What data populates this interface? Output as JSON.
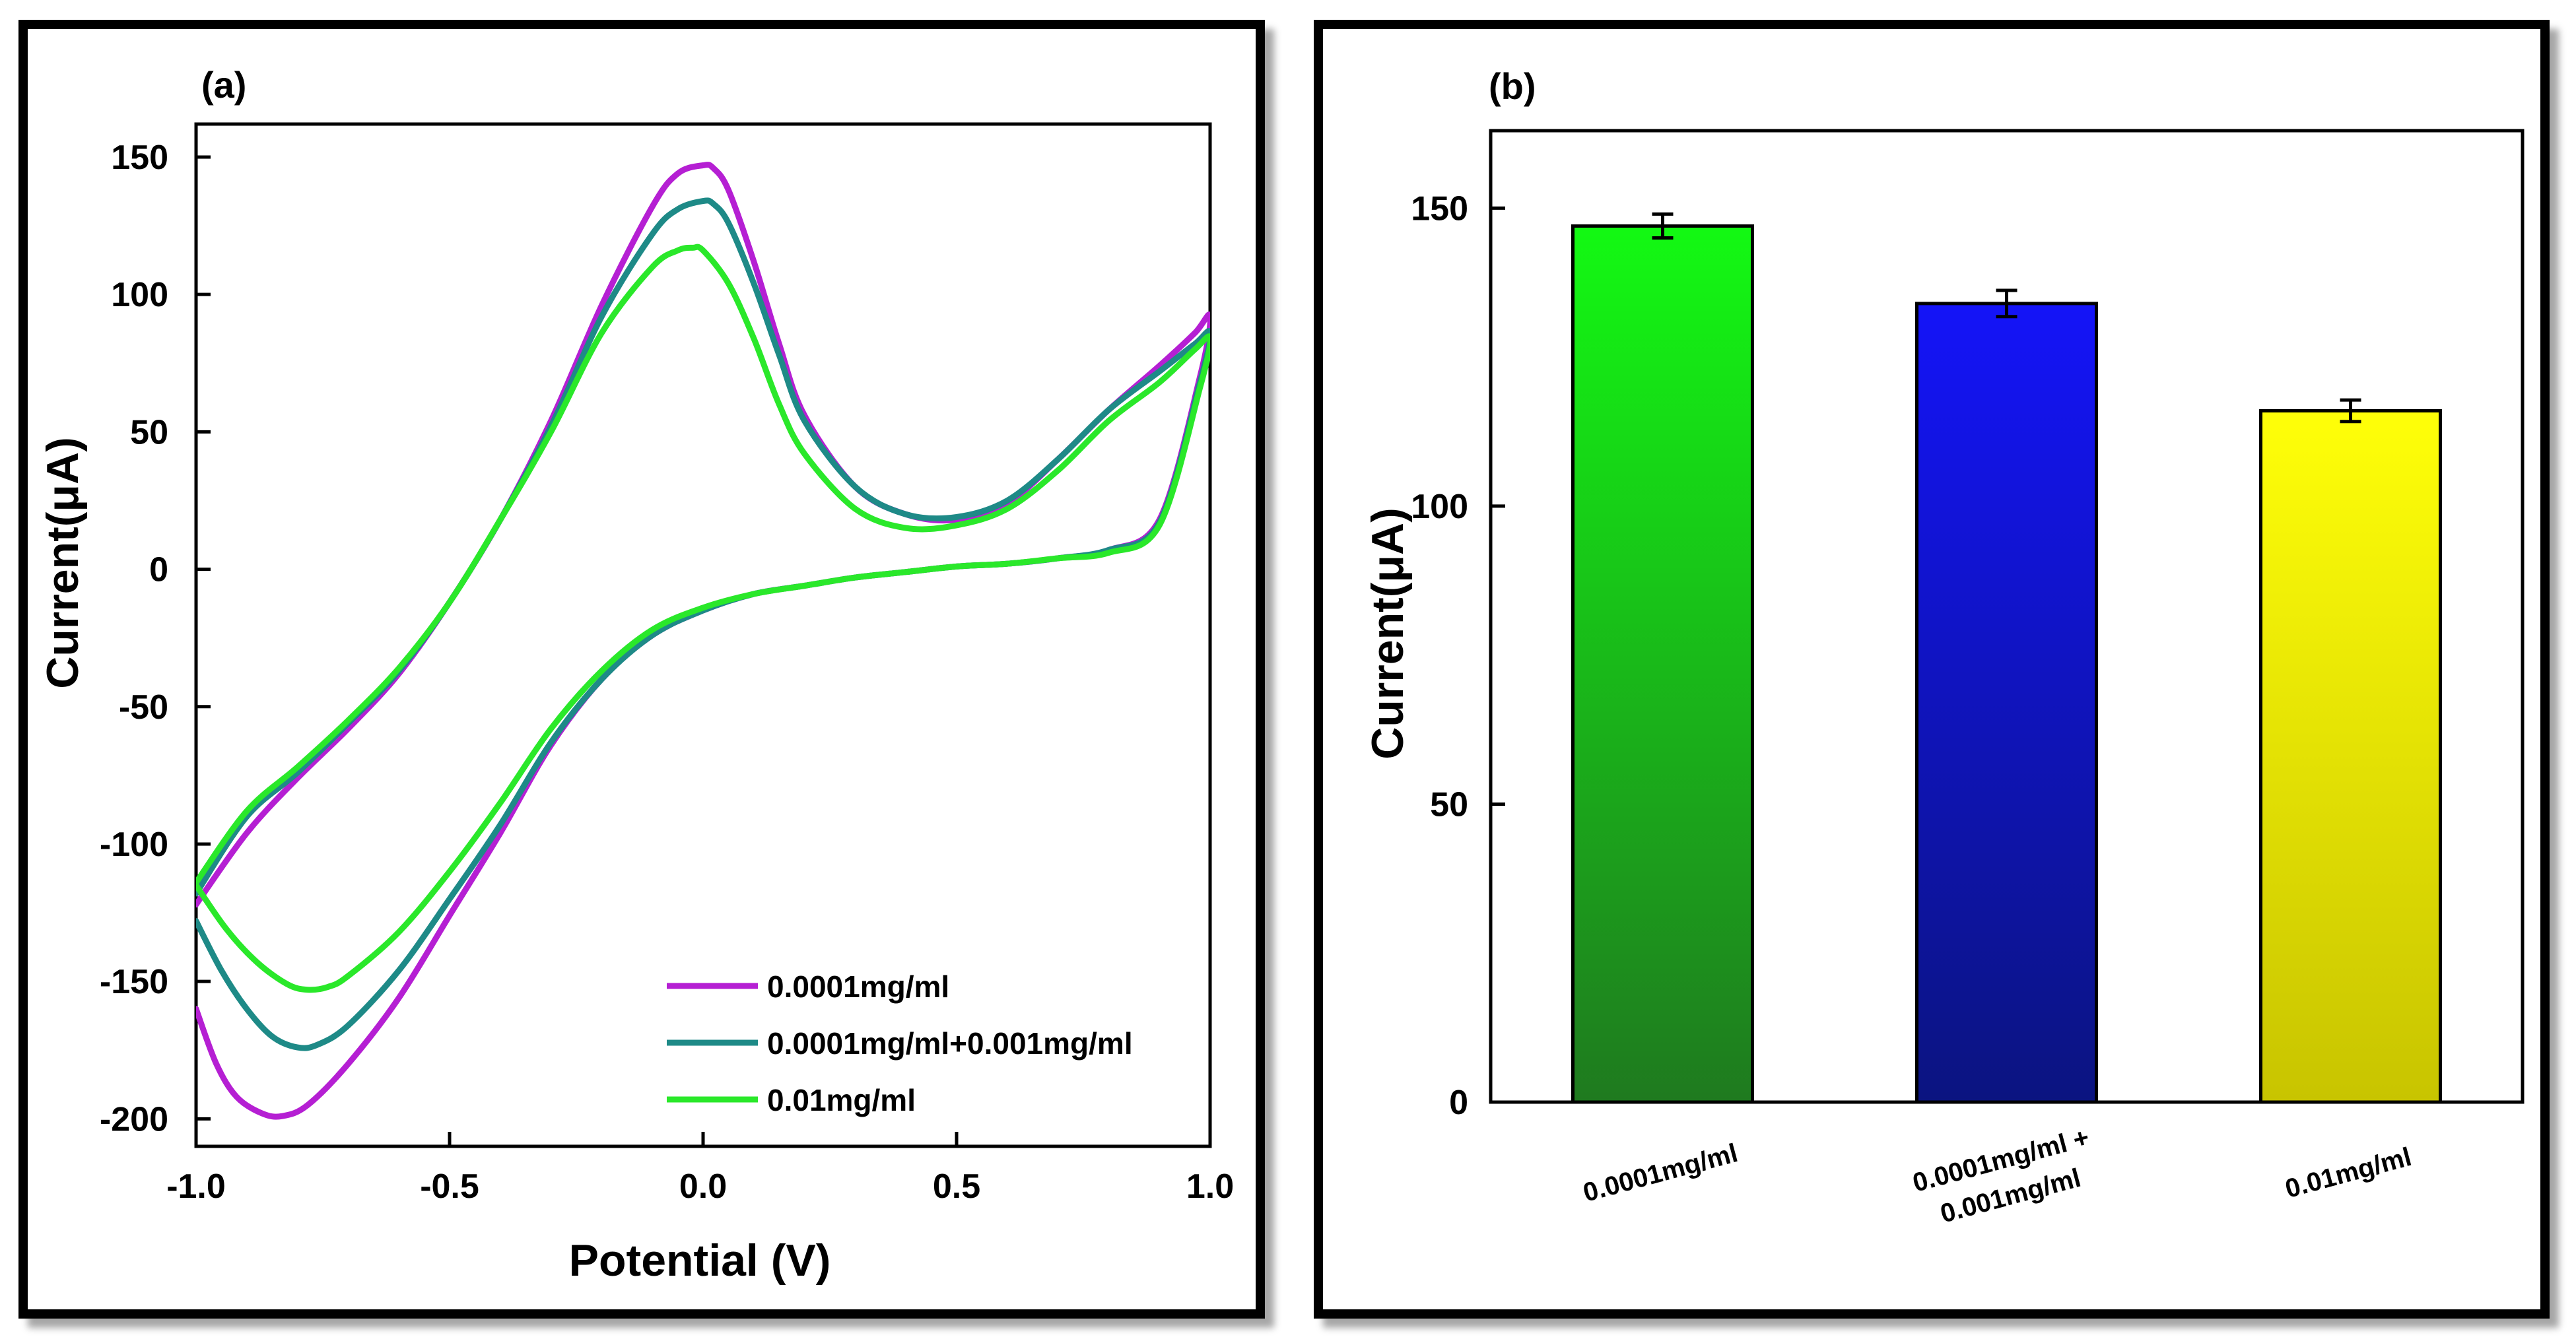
{
  "chart_data": [
    {
      "panel_label": "(a)",
      "type": "line",
      "title": "",
      "xlabel": "Potential (V)",
      "ylabel": "Current(μA)",
      "xlim": [
        -1.0,
        1.0
      ],
      "ylim": [
        -210,
        162
      ],
      "xticks": [
        -1.0,
        -0.5,
        0.0,
        0.5,
        1.0
      ],
      "xtick_labels": [
        "-1.0",
        "-0.5",
        "0.0",
        "0.5",
        "1.0"
      ],
      "yticks": [
        -200,
        -150,
        -100,
        -50,
        0,
        50,
        100,
        150
      ],
      "ytick_labels": [
        "-200",
        "-150",
        "-100",
        "-50",
        "0",
        "50",
        "100",
        "150"
      ],
      "legend_position": "bottom-right",
      "series": [
        {
          "name": "0.0001mg/ml",
          "color": "#b51fd3",
          "x": [
            -1.0,
            -0.9,
            -0.8,
            -0.7,
            -0.6,
            -0.5,
            -0.4,
            -0.3,
            -0.2,
            -0.1,
            -0.05,
            0.0,
            0.02,
            0.05,
            0.1,
            0.15,
            0.2,
            0.3,
            0.4,
            0.5,
            0.6,
            0.7,
            0.8,
            0.9,
            0.97,
            1.0,
            0.98,
            0.9,
            0.8,
            0.7,
            0.6,
            0.5,
            0.4,
            0.3,
            0.2,
            0.1,
            0.0,
            -0.1,
            -0.2,
            -0.3,
            -0.4,
            -0.5,
            -0.6,
            -0.7,
            -0.78,
            -0.83,
            -0.87,
            -0.92,
            -0.96,
            -1.0
          ],
          "y": [
            -122,
            -96,
            -76,
            -58,
            -38,
            -12,
            18,
            54,
            96,
            132,
            144,
            147,
            146,
            138,
            112,
            82,
            56,
            30,
            20,
            18,
            24,
            40,
            58,
            74,
            86,
            92,
            70,
            18,
            7,
            4,
            2,
            1,
            -1,
            -3,
            -6,
            -9,
            -15,
            -24,
            -40,
            -64,
            -96,
            -126,
            -156,
            -180,
            -195,
            -199,
            -198,
            -192,
            -180,
            -160
          ]
        },
        {
          "name": "0.0001mg/ml+0.001mg/ml",
          "color": "#1e8a87",
          "x": [
            -1.0,
            -0.9,
            -0.8,
            -0.7,
            -0.6,
            -0.5,
            -0.4,
            -0.3,
            -0.2,
            -0.1,
            -0.05,
            0.0,
            0.02,
            0.05,
            0.1,
            0.15,
            0.2,
            0.3,
            0.4,
            0.5,
            0.6,
            0.7,
            0.8,
            0.9,
            0.97,
            1.0,
            0.98,
            0.9,
            0.8,
            0.7,
            0.6,
            0.5,
            0.4,
            0.3,
            0.2,
            0.1,
            0.0,
            -0.1,
            -0.2,
            -0.3,
            -0.4,
            -0.5,
            -0.6,
            -0.7,
            -0.76,
            -0.8,
            -0.85,
            -0.9,
            -0.95,
            -1.0
          ],
          "y": [
            -118,
            -90,
            -74,
            -56,
            -37,
            -12,
            18,
            52,
            92,
            122,
            131,
            134,
            133,
            126,
            104,
            78,
            54,
            30,
            20,
            19,
            25,
            40,
            58,
            72,
            82,
            86,
            68,
            17,
            7,
            4,
            2,
            1,
            -1,
            -3,
            -6,
            -9,
            -15,
            -24,
            -40,
            -63,
            -93,
            -120,
            -146,
            -166,
            -173,
            -174,
            -170,
            -160,
            -146,
            -128
          ]
        },
        {
          "name": "0.01mg/ml",
          "color": "#2ae82a",
          "x": [
            -1.0,
            -0.9,
            -0.8,
            -0.7,
            -0.6,
            -0.5,
            -0.4,
            -0.3,
            -0.2,
            -0.1,
            -0.05,
            -0.02,
            0.0,
            0.05,
            0.1,
            0.15,
            0.2,
            0.3,
            0.4,
            0.5,
            0.6,
            0.7,
            0.8,
            0.9,
            0.97,
            1.0,
            0.98,
            0.9,
            0.8,
            0.7,
            0.6,
            0.5,
            0.4,
            0.3,
            0.2,
            0.1,
            0.0,
            -0.1,
            -0.2,
            -0.3,
            -0.4,
            -0.5,
            -0.6,
            -0.7,
            -0.74,
            -0.78,
            -0.82,
            -0.88,
            -0.94,
            -1.0
          ],
          "y": [
            -114,
            -88,
            -72,
            -55,
            -36,
            -12,
            18,
            50,
            86,
            110,
            116,
            117,
            116,
            104,
            84,
            60,
            42,
            22,
            15,
            16,
            22,
            36,
            54,
            68,
            80,
            84,
            66,
            16,
            6,
            4,
            2,
            1,
            -1,
            -3,
            -6,
            -9,
            -14,
            -22,
            -37,
            -58,
            -85,
            -110,
            -132,
            -148,
            -152,
            -153,
            -151,
            -143,
            -131,
            -115
          ]
        }
      ]
    },
    {
      "panel_label": "(b)",
      "type": "bar",
      "title": "",
      "xlabel": "",
      "ylabel": "Current(μA)",
      "ylim": [
        0,
        163
      ],
      "yticks": [
        0,
        50,
        100,
        150
      ],
      "ytick_labels": [
        "0",
        "50",
        "100",
        "150"
      ],
      "categories": [
        "0.0001mg/ml",
        "0.0001mg/ml + 0.001mg/ml",
        "0.01mg/ml"
      ],
      "category_lines": [
        [
          "0.0001mg/ml"
        ],
        [
          "0.0001mg/ml +",
          "0.001mg/ml"
        ],
        [
          "0.01mg/ml"
        ]
      ],
      "values": [
        147,
        134,
        116
      ],
      "errors": [
        2,
        2.2,
        1.8
      ],
      "bar_colors": [
        {
          "top": "#13f913",
          "bottom": "#1f7a1f"
        },
        {
          "top": "#1414f8",
          "bottom": "#0b1480"
        },
        {
          "top": "#ffff08",
          "bottom": "#c8c400"
        }
      ]
    }
  ]
}
